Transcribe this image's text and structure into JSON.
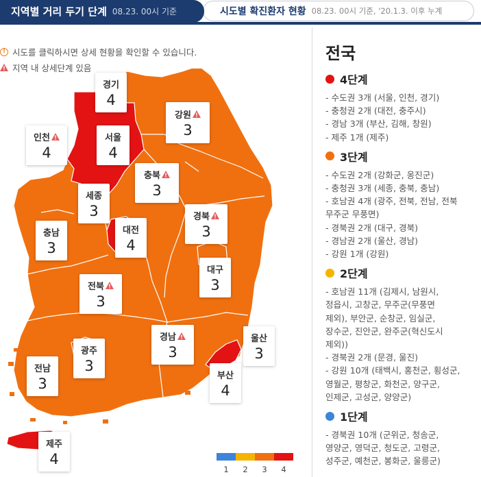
{
  "tabs": {
    "active": {
      "title": "지역별 거리 두기 단계",
      "subtitle": "08.23. 00시 기준"
    },
    "inactive": {
      "title": "시도별 확진환자 현황",
      "subtitle": "08.23. 00시 기준, '20.1.3. 이후 누계"
    }
  },
  "notices": {
    "click_hint": "시도를 클릭하시면 상세 현황을 확인할 수 있습니다.",
    "detail_hint": "지역 내 상세단계 있음"
  },
  "colors": {
    "level1": "#3d85d9",
    "level2": "#f5b400",
    "level3": "#f07010",
    "level4": "#e31313",
    "header": "#1c3b6e"
  },
  "regions": {
    "gyeonggi": {
      "name": "경기",
      "level": "4"
    },
    "incheon": {
      "name": "인천",
      "level": "4"
    },
    "seoul": {
      "name": "서울",
      "level": "4"
    },
    "gangwon": {
      "name": "강원",
      "level": "3"
    },
    "chungbuk": {
      "name": "충북",
      "level": "3"
    },
    "sejong": {
      "name": "세종",
      "level": "3"
    },
    "chungnam": {
      "name": "충남",
      "level": "3"
    },
    "daejeon": {
      "name": "대전",
      "level": "4"
    },
    "gyeongbuk": {
      "name": "경북",
      "level": "3"
    },
    "daegu": {
      "name": "대구",
      "level": "3"
    },
    "jeonbuk": {
      "name": "전북",
      "level": "3"
    },
    "gyeongnam": {
      "name": "경남",
      "level": "3"
    },
    "ulsan": {
      "name": "울산",
      "level": "3"
    },
    "gwangju": {
      "name": "광주",
      "level": "3"
    },
    "jeonnam": {
      "name": "전남",
      "level": "3"
    },
    "busan": {
      "name": "부산",
      "level": "4"
    },
    "jeju": {
      "name": "제주",
      "level": "4"
    }
  },
  "legend": [
    "1",
    "2",
    "3",
    "4"
  ],
  "panel": {
    "title": "전국",
    "stages": [
      {
        "name": "4단계",
        "items": [
          "- 수도권 3개 (서울, 인천, 경기)",
          "- 충청권 2개 (대전, 충주시)",
          "- 경남 3개 (부산, 김해, 창원)",
          "- 제주 1개 (제주)"
        ]
      },
      {
        "name": "3단계",
        "items": [
          "- 수도권 2개 (강화군, 옹진군)",
          "- 충청권 3개 (세종, 충북, 충남)",
          "- 호남권 4개 (광주, 전북, 전남, 전북",
          "무주군 무풍면)",
          "- 경북권 2개 (대구, 경북)",
          "- 경남권 2개 (울산, 경남)",
          "- 강원 1개 (강원)"
        ]
      },
      {
        "name": "2단계",
        "items": [
          "- 호남권 11개 (김제시, 남원시,",
          "정읍시, 고창군, 무주군(무풍면",
          "제외), 부안군, 순창군, 임실군,",
          "장수군, 진안군, 완주군(혁신도시",
          "제외))",
          "- 경북권 2개 (문경, 울진)",
          "- 강원 10개 (태백시, 홍천군, 횡성군,",
          "영월군, 평창군, 화천군, 양구군,",
          "인제군, 고성군, 양양군)"
        ]
      },
      {
        "name": "1단계",
        "items": [
          "- 경북권 10개 (군위군, 청송군,",
          "영양군, 영덕군, 청도군, 고령군,",
          "성주군, 예천군, 봉화군, 울릉군)"
        ]
      }
    ]
  }
}
